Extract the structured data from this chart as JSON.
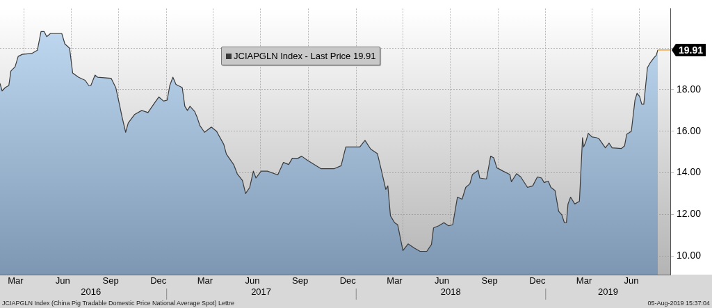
{
  "chart_data": {
    "type": "area",
    "x": [
      "2016-02-15",
      "2016-02-19",
      "2016-02-25",
      "2016-03-03",
      "2016-03-07",
      "2016-03-15",
      "2016-03-21",
      "2016-03-29",
      "2016-04-16",
      "2016-04-27",
      "2016-05-04",
      "2016-05-10",
      "2016-05-15",
      "2016-05-22",
      "2016-06-13",
      "2016-06-19",
      "2016-06-28",
      "2016-07-04",
      "2016-07-15",
      "2016-07-28",
      "2016-08-04",
      "2016-08-08",
      "2016-08-16",
      "2016-08-21",
      "2016-09-16",
      "2016-09-25",
      "2016-10-02",
      "2016-10-07",
      "2016-10-14",
      "2016-10-19",
      "2016-10-31",
      "2016-11-14",
      "2016-11-26",
      "2016-12-07",
      "2016-12-17",
      "2016-12-26",
      "2017-01-02",
      "2017-01-07",
      "2017-01-13",
      "2017-01-19",
      "2017-01-31",
      "2017-02-05",
      "2017-02-10",
      "2017-02-15",
      "2017-02-24",
      "2017-03-01",
      "2017-03-06",
      "2017-03-15",
      "2017-03-28",
      "2017-04-07",
      "2017-04-21",
      "2017-04-26",
      "2017-05-10",
      "2017-05-17",
      "2017-05-27",
      "2017-06-02",
      "2017-06-10",
      "2017-06-17",
      "2017-06-22",
      "2017-07-02",
      "2017-07-14",
      "2017-08-03",
      "2017-08-14",
      "2017-08-24",
      "2017-08-31",
      "2017-09-11",
      "2017-09-18",
      "2017-09-29",
      "2017-10-12",
      "2017-10-25",
      "2017-11-20",
      "2017-12-03",
      "2017-12-12",
      "2018-01-08",
      "2018-01-18",
      "2018-01-29",
      "2018-02-11",
      "2018-02-18",
      "2018-02-27",
      "2018-03-03",
      "2018-03-08",
      "2018-03-16",
      "2018-03-22",
      "2018-04-01",
      "2018-04-11",
      "2018-04-23",
      "2018-05-04",
      "2018-05-17",
      "2018-05-26",
      "2018-05-30",
      "2018-06-09",
      "2018-06-19",
      "2018-06-28",
      "2018-07-06",
      "2018-07-15",
      "2018-07-24",
      "2018-07-31",
      "2018-08-08",
      "2018-08-13",
      "2018-08-24",
      "2018-08-27",
      "2018-09-09",
      "2018-09-17",
      "2018-09-23",
      "2018-09-29",
      "2018-10-11",
      "2018-10-24",
      "2018-10-27",
      "2018-11-06",
      "2018-11-14",
      "2018-11-27",
      "2018-12-07",
      "2018-12-16",
      "2018-12-24",
      "2018-12-29",
      "2019-01-06",
      "2019-01-11",
      "2019-01-19",
      "2019-01-26",
      "2019-02-01",
      "2019-02-06",
      "2019-02-10",
      "2019-02-13",
      "2019-02-18",
      "2019-02-26",
      "2019-03-07",
      "2019-03-13",
      "2019-03-15",
      "2019-03-19",
      "2019-03-24",
      "2019-03-31",
      "2019-04-08",
      "2019-04-14",
      "2019-04-26",
      "2019-05-03",
      "2019-05-09",
      "2019-05-27",
      "2019-06-02",
      "2019-06-06",
      "2019-06-15",
      "2019-06-22",
      "2019-06-26",
      "2019-07-01",
      "2019-07-05",
      "2019-07-09",
      "2019-07-16",
      "2019-07-22",
      "2019-07-29",
      "2019-08-02",
      "2019-08-05"
    ],
    "series": [
      {
        "name": "JCIAPGLN Index - Last Price 19.91",
        "color": "#3a3a3a",
        "values": [
          18.3,
          17.94,
          18.1,
          18.2,
          18.9,
          19.1,
          19.6,
          19.7,
          19.74,
          19.9,
          20.8,
          20.8,
          20.55,
          20.7,
          20.7,
          20.2,
          20.0,
          18.8,
          18.6,
          18.45,
          18.2,
          18.2,
          18.7,
          18.6,
          18.55,
          18.1,
          17.3,
          16.7,
          15.95,
          16.4,
          16.8,
          17.0,
          16.9,
          17.3,
          17.65,
          17.45,
          17.5,
          18.2,
          18.6,
          18.25,
          18.1,
          17.2,
          17.0,
          17.2,
          16.95,
          16.65,
          16.27,
          15.95,
          16.2,
          16.0,
          15.37,
          14.9,
          14.4,
          13.95,
          13.63,
          13.0,
          13.3,
          14.08,
          13.75,
          14.08,
          14.08,
          13.9,
          14.5,
          14.4,
          14.7,
          14.7,
          14.8,
          14.6,
          14.4,
          14.2,
          14.2,
          14.34,
          15.24,
          15.24,
          15.56,
          15.14,
          14.92,
          14.18,
          13.2,
          13.37,
          11.93,
          11.6,
          11.5,
          10.26,
          10.58,
          10.38,
          10.22,
          10.22,
          10.55,
          11.35,
          11.45,
          11.6,
          11.45,
          11.5,
          12.83,
          12.73,
          13.3,
          13.47,
          13.92,
          14.12,
          13.75,
          13.7,
          14.8,
          14.72,
          14.24,
          14.08,
          13.92,
          13.57,
          13.96,
          13.8,
          13.3,
          13.37,
          13.8,
          13.75,
          13.53,
          13.6,
          13.3,
          13.15,
          12.15,
          11.98,
          11.6,
          11.6,
          12.5,
          12.83,
          12.5,
          12.63,
          15.69,
          15.24,
          15.47,
          15.9,
          15.73,
          15.7,
          15.63,
          15.2,
          15.43,
          15.2,
          15.17,
          15.3,
          15.85,
          16.0,
          17.5,
          17.83,
          17.67,
          17.3,
          17.3,
          19.06,
          19.32,
          19.55,
          19.65,
          19.91
        ]
      }
    ],
    "xlim": [
      "2016-02-15",
      "2019-08-29"
    ],
    "xticks": [
      {
        "value": "2016-03-16",
        "label": "Mar"
      },
      {
        "value": "2016-04-01",
        "label": null
      },
      {
        "value": "2016-06-15",
        "label": "Jun"
      },
      {
        "value": "2016-07-01",
        "label": null
      },
      {
        "value": "2016-09-15",
        "label": "Sep"
      },
      {
        "value": "2016-10-01",
        "label": null
      },
      {
        "value": "2016-12-16",
        "label": "Dec"
      },
      {
        "value": "2017-01-01",
        "label": null
      },
      {
        "value": "2017-03-16",
        "label": "Mar"
      },
      {
        "value": "2017-04-01",
        "label": null
      },
      {
        "value": "2017-06-15",
        "label": "Jun"
      },
      {
        "value": "2017-07-01",
        "label": null
      },
      {
        "value": "2017-09-15",
        "label": "Sep"
      },
      {
        "value": "2017-10-01",
        "label": null
      },
      {
        "value": "2017-12-16",
        "label": "Dec"
      },
      {
        "value": "2018-01-01",
        "label": null
      },
      {
        "value": "2018-03-16",
        "label": "Mar"
      },
      {
        "value": "2018-04-01",
        "label": null
      },
      {
        "value": "2018-06-15",
        "label": "Jun"
      },
      {
        "value": "2018-07-01",
        "label": null
      },
      {
        "value": "2018-09-15",
        "label": "Sep"
      },
      {
        "value": "2018-10-01",
        "label": null
      },
      {
        "value": "2018-12-16",
        "label": "Dec"
      },
      {
        "value": "2019-01-01",
        "label": null
      },
      {
        "value": "2019-03-16",
        "label": "Mar"
      },
      {
        "value": "2019-04-01",
        "label": null
      },
      {
        "value": "2019-06-15",
        "label": "Jun"
      },
      {
        "value": "2019-07-01",
        "label": null
      }
    ],
    "x2lim": [
      "2016-02-15",
      "2019-08-29"
    ],
    "x2ticks": [
      {
        "value": "2016-08-08",
        "label": "2016"
      },
      {
        "value": "2017-01-01",
        "label": null
      },
      {
        "value": "2017-07-02",
        "label": "2017"
      },
      {
        "value": "2018-01-01",
        "label": null
      },
      {
        "value": "2018-07-02",
        "label": "2018"
      },
      {
        "value": "2019-01-01",
        "label": null
      },
      {
        "value": "2019-05-01",
        "label": "2019"
      }
    ],
    "ylim": [
      9.1,
      21.9
    ],
    "yticks": [
      {
        "value": 10,
        "label": "10.00"
      },
      {
        "value": 12,
        "label": "12.00"
      },
      {
        "value": 14,
        "label": "14.00"
      },
      {
        "value": 16,
        "label": "16.00"
      },
      {
        "value": 18,
        "label": "18.00"
      },
      {
        "value": 20,
        "label": null
      }
    ],
    "ref_lines": [
      {
        "axis": "y",
        "value": 19.91,
        "label": "19.91",
        "color": "#f0a030"
      }
    ],
    "grid": true,
    "legend": "top",
    "annotations": [
      "JCIAPGLN Index (China Pig Tradable Domestic Price National Average Spot) Lettre",
      "05-Aug-2019 15:37:04"
    ]
  }
}
